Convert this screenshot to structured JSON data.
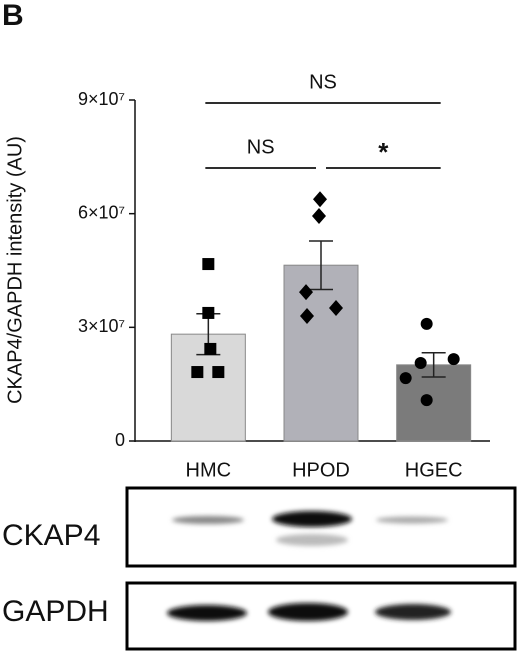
{
  "panel_label": "B",
  "chart_data": {
    "type": "bar",
    "y_label": "CKAP4/GAPDH intensity (AU)",
    "categories": [
      "HMC",
      "HPOD",
      "HGEC"
    ],
    "values": [
      28200000,
      46400000,
      20100000
    ],
    "errors": [
      5400000,
      6400000,
      3200000
    ],
    "colors": [
      "#d9d9d9",
      "#b1b1b8",
      "#7b7b7b"
    ],
    "points": [
      [
        46700000,
        33800000,
        24300000,
        18200000,
        18200000
      ],
      [
        63800000,
        59400000,
        39300000,
        35100000,
        33000000
      ],
      [
        30900000,
        21600000,
        20600000,
        16600000,
        10800000
      ]
    ],
    "markers": [
      "square",
      "diamond",
      "circle"
    ],
    "ylim": [
      0,
      90000000
    ],
    "yticks": [
      0,
      {
        "value": 30000000,
        "label": "3×10⁷"
      },
      {
        "value": 60000000,
        "label": "6×10⁷"
      },
      {
        "value": 90000000,
        "label": "9×10⁷"
      }
    ],
    "comparisons": [
      {
        "from": "HMC",
        "to": "HGEC",
        "label": "NS"
      },
      {
        "from": "HMC",
        "to": "HPOD",
        "label": "NS"
      },
      {
        "from": "HPOD",
        "to": "HGEC",
        "label": "*"
      }
    ]
  },
  "blot": {
    "rows": [
      "CKAP4",
      "GAPDH"
    ]
  }
}
